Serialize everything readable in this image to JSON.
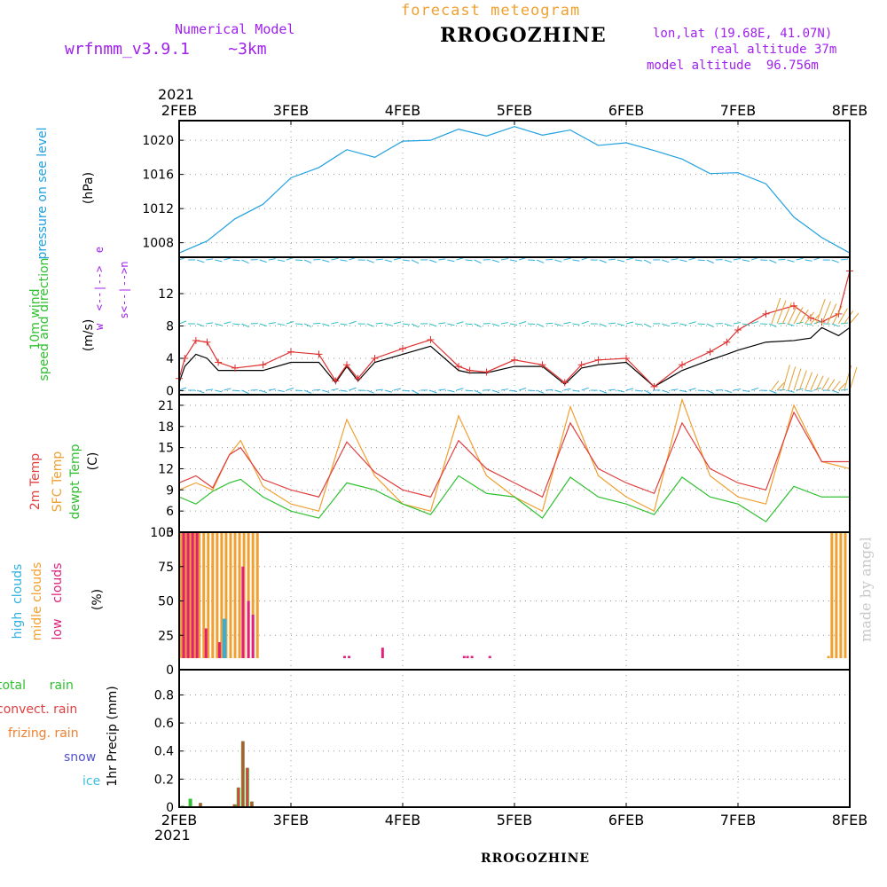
{
  "header": {
    "model_label": "Numerical Model",
    "model_version": "wrfnmm_v3.9.1    ~3km",
    "product": "forecast  meteogram",
    "station": "RROGOZHINE",
    "lonlat": "lon,lat (19.68E, 41.07N)",
    "real_altitude": "real altitude 37m",
    "model_altitude": "model altitude  96.756m"
  },
  "time_axis": {
    "year": "2021",
    "days": [
      "2FEB",
      "3FEB",
      "4FEB",
      "5FEB",
      "6FEB",
      "7FEB",
      "8FEB"
    ]
  },
  "footer": {
    "station": "RROGOZHINE",
    "credit": "made by angel"
  },
  "panel_labels": {
    "pressure": {
      "name": "pressure on see level",
      "unit": "(hPa)"
    },
    "wind": {
      "name1": "10m wind",
      "name2": "speed and direction",
      "unit": "(m/s)",
      "compass_top": "w  <--|-->  e",
      "compass_bottom": "s<--|-->n",
      "compass_n": "n"
    },
    "temp": {
      "l1": "2m Temp",
      "l2": "SFC Temp",
      "l3": "dewpt Temp",
      "unit": "(C)"
    },
    "clouds": {
      "l1": "high  clouds",
      "l2": "midle clouds",
      "l3": "low    clouds",
      "unit": "(%)"
    },
    "precip": {
      "total": "total      rain",
      "convect": "convect. rain",
      "frizing": "frizing. rain",
      "snow": "snow",
      "ice": "ice",
      "unit": "1hr Precip (mm)"
    }
  },
  "colors": {
    "pressure": "#20a0e0",
    "wind_speed": "#e03030",
    "wind_gust": "#000000",
    "temp2m": "#e04040",
    "sfc": "#f0a030",
    "dewpt": "#30c030",
    "high": "#30b0e0",
    "mid": "#f0a030",
    "low": "#e0207a",
    "total": "#30c030",
    "convect": "#e04040",
    "frizing": "#f08030",
    "snow": "#5050d0",
    "ice": "#40c0e0",
    "purple": "#a020f0"
  },
  "chart_data": [
    {
      "type": "line",
      "id": "pressure",
      "ylabel": "(hPa)",
      "yticks": [
        1008,
        1012,
        1016,
        1020
      ],
      "ylim": [
        1006.3,
        1022.3
      ],
      "x": [
        0,
        0.25,
        0.5,
        0.75,
        1.0,
        1.25,
        1.5,
        1.75,
        2.0,
        2.25,
        2.5,
        2.75,
        3.0,
        3.25,
        3.5,
        3.75,
        4.0,
        4.25,
        4.5,
        4.75,
        5.0,
        5.25,
        5.5,
        5.75,
        6.0
      ],
      "series": [
        {
          "values": [
            1006.8,
            1008.2,
            1010.8,
            1012.5,
            1015.6,
            1016.8,
            1018.9,
            1018.0,
            1019.9,
            1020.0,
            1021.3,
            1020.5,
            1021.6,
            1020.6,
            1021.2,
            1019.4,
            1019.7,
            1018.8,
            1017.8,
            1016.1,
            1016.2,
            1014.9,
            1011.0,
            1008.6,
            1006.8
          ]
        }
      ]
    },
    {
      "type": "line",
      "id": "wind",
      "ylabel": "(m/s)",
      "yticks": [
        0,
        4,
        8,
        12
      ],
      "ylim": [
        -0.5,
        16.5
      ],
      "x": [
        0,
        0.05,
        0.15,
        0.25,
        0.35,
        0.5,
        0.75,
        1.0,
        1.25,
        1.4,
        1.5,
        1.6,
        1.75,
        2.0,
        2.25,
        2.5,
        2.6,
        2.75,
        3.0,
        3.25,
        3.45,
        3.6,
        3.75,
        4.0,
        4.25,
        4.5,
        4.75,
        4.9,
        5.0,
        5.25,
        5.5,
        5.65,
        5.75,
        5.9,
        6.0
      ],
      "series": [
        {
          "name": "speed",
          "values": [
            1.5,
            4.0,
            6.2,
            6.0,
            3.5,
            2.8,
            3.2,
            4.8,
            4.5,
            1.2,
            3.2,
            1.5,
            4.0,
            5.2,
            6.3,
            3.0,
            2.5,
            2.3,
            3.8,
            3.2,
            1.0,
            3.2,
            3.8,
            4.0,
            0.5,
            3.2,
            4.8,
            6.0,
            7.5,
            9.5,
            10.5,
            9.0,
            8.5,
            9.5,
            14.8
          ]
        },
        {
          "name": "gust",
          "values": [
            1.0,
            3.0,
            4.5,
            4.0,
            2.5,
            2.5,
            2.5,
            3.5,
            3.5,
            1.0,
            3.0,
            1.2,
            3.5,
            4.5,
            5.5,
            2.5,
            2.2,
            2.2,
            3.0,
            3.0,
            0.8,
            2.8,
            3.2,
            3.5,
            0.5,
            2.5,
            3.8,
            4.5,
            5.0,
            6.0,
            6.2,
            6.5,
            7.8,
            6.8,
            7.8
          ]
        }
      ]
    },
    {
      "type": "line",
      "id": "temperature",
      "ylabel": "(C)",
      "yticks": [
        3,
        6,
        9,
        12,
        15,
        18,
        21
      ],
      "ylim": [
        3,
        22.5
      ],
      "x": [
        0,
        0.15,
        0.3,
        0.45,
        0.55,
        0.75,
        1.0,
        1.25,
        1.5,
        1.75,
        2.0,
        2.25,
        2.5,
        2.75,
        3.0,
        3.25,
        3.5,
        3.75,
        4.0,
        4.25,
        4.5,
        4.75,
        5.0,
        5.25,
        5.5,
        5.75,
        6.0
      ],
      "series": [
        {
          "name": "2m",
          "values": [
            10,
            11,
            9.3,
            14,
            15.0,
            10.5,
            9,
            8,
            15.8,
            11.5,
            9,
            8,
            16.0,
            12,
            10,
            8,
            18.5,
            12,
            10,
            8.5,
            18.5,
            12,
            10,
            9,
            20.0,
            13,
            13
          ]
        },
        {
          "name": "sfc",
          "values": [
            9,
            10,
            9.0,
            14,
            16.0,
            9.5,
            7,
            6,
            19.0,
            11,
            7,
            6,
            19.5,
            11,
            8,
            6,
            20.8,
            11,
            8,
            6,
            21.8,
            11,
            8,
            7,
            21.0,
            13,
            12
          ]
        },
        {
          "name": "dewpt",
          "values": [
            8,
            7,
            8.8,
            10,
            10.5,
            8,
            6,
            5,
            10,
            9,
            7,
            5.5,
            11.0,
            8.5,
            8,
            5,
            10.8,
            8,
            7,
            5.5,
            10.8,
            8,
            7,
            4.5,
            9.5,
            8,
            8
          ]
        }
      ]
    },
    {
      "type": "bar",
      "id": "clouds",
      "ylabel": "(%)",
      "yticks": [
        0,
        25,
        50,
        75,
        100
      ],
      "ylim": [
        0,
        100
      ],
      "series": [
        {
          "name": "mid",
          "bars": [
            [
              0.02,
              100
            ],
            [
              0.06,
              100
            ],
            [
              0.1,
              100
            ],
            [
              0.14,
              100
            ],
            [
              0.18,
              100
            ],
            [
              0.22,
              100
            ],
            [
              0.26,
              100
            ],
            [
              0.3,
              100
            ],
            [
              0.34,
              100
            ],
            [
              0.38,
              100
            ],
            [
              0.42,
              100
            ],
            [
              0.46,
              100
            ],
            [
              0.5,
              100
            ],
            [
              0.54,
              100
            ],
            [
              0.58,
              100
            ],
            [
              0.62,
              100
            ],
            [
              0.66,
              100
            ],
            [
              0.7,
              100
            ],
            [
              5.81,
              10
            ],
            [
              5.84,
              100
            ],
            [
              5.88,
              100
            ],
            [
              5.92,
              100
            ],
            [
              5.96,
              100
            ]
          ]
        },
        {
          "name": "low",
          "bars": [
            [
              0.04,
              100
            ],
            [
              0.08,
              100
            ],
            [
              0.12,
              100
            ],
            [
              0.16,
              100
            ],
            [
              0.24,
              30
            ],
            [
              0.36,
              20
            ],
            [
              0.44,
              5
            ],
            [
              0.57,
              75
            ],
            [
              0.62,
              50
            ],
            [
              0.66,
              40
            ],
            [
              1.48,
              10
            ],
            [
              1.52,
              10
            ],
            [
              1.82,
              16
            ],
            [
              2.55,
              10
            ],
            [
              2.58,
              10
            ],
            [
              2.62,
              10
            ],
            [
              2.78,
              10
            ],
            [
              2.82,
              5
            ]
          ]
        },
        {
          "name": "high",
          "bars": [
            [
              0.4,
              37
            ],
            [
              0.41,
              37
            ]
          ]
        }
      ]
    },
    {
      "type": "bar",
      "id": "precip",
      "ylabel": "1hr Precip (mm)",
      "yticks": [
        0,
        0.2,
        0.4,
        0.6,
        0.8
      ],
      "ylim": [
        0,
        0.98
      ],
      "series": [
        {
          "name": "total",
          "bars": [
            [
              0.03,
              0.01
            ],
            [
              0.1,
              0.06
            ],
            [
              0.19,
              0.03
            ],
            [
              0.5,
              0.02
            ],
            [
              0.53,
              0.14
            ],
            [
              0.57,
              0.47
            ],
            [
              0.61,
              0.28
            ],
            [
              0.65,
              0.04
            ]
          ]
        },
        {
          "name": "convect",
          "bars": [
            [
              0.19,
              0.03
            ],
            [
              0.49,
              0.02
            ],
            [
              0.53,
              0.14
            ],
            [
              0.57,
              0.47
            ],
            [
              0.61,
              0.28
            ],
            [
              0.65,
              0.04
            ]
          ]
        }
      ]
    }
  ]
}
